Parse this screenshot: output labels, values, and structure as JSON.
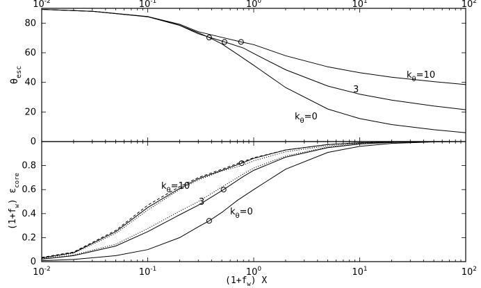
{
  "chart_data": [
    {
      "type": "line",
      "panel": "top",
      "xscale": "log",
      "xlim": [
        0.01,
        100
      ],
      "ylim": [
        0,
        90
      ],
      "yticks": [
        0,
        20,
        40,
        60,
        80
      ],
      "ylabel": {
        "main": "θ",
        "sub": "esc"
      },
      "grid": false,
      "series": [
        {
          "name": "kθ=10",
          "x": [
            0.01,
            0.03,
            0.1,
            0.2,
            0.3,
            0.5,
            0.76,
            1,
            2,
            5,
            10,
            20,
            50,
            100
          ],
          "y": [
            89.3,
            88,
            84.4,
            79.2,
            74.2,
            70.4,
            67.3,
            65.5,
            58,
            50.5,
            46.5,
            43.5,
            40.5,
            38.5
          ]
        },
        {
          "name": "3",
          "x": [
            0.01,
            0.03,
            0.1,
            0.2,
            0.3,
            0.53,
            0.8,
            1,
            2,
            5,
            10,
            20,
            50,
            100
          ],
          "y": [
            89.3,
            88,
            84.4,
            78.5,
            72.8,
            67.3,
            63.2,
            59.5,
            48.5,
            37.5,
            32,
            28,
            24,
            21.5
          ]
        },
        {
          "name": "kθ=0",
          "x": [
            0.01,
            0.03,
            0.1,
            0.2,
            0.3,
            0.38,
            0.5,
            0.7,
            1,
            2,
            5,
            10,
            20,
            50,
            100
          ],
          "y": [
            89.3,
            88,
            84.3,
            78.5,
            73.5,
            70.3,
            66,
            59,
            51.5,
            36.5,
            22,
            15.5,
            11.5,
            8,
            6
          ]
        }
      ],
      "markers": [
        {
          "x": 0.38,
          "y": 70.3
        },
        {
          "x": 0.53,
          "y": 67.3
        },
        {
          "x": 0.76,
          "y": 67.3
        }
      ],
      "annotations": [
        {
          "main": "k",
          "sub": "θ",
          "tail": "=10"
        },
        {
          "main": "3",
          "sub": "",
          "tail": ""
        },
        {
          "main": "k",
          "sub": "θ",
          "tail": "=0"
        }
      ]
    },
    {
      "type": "line",
      "panel": "bottom",
      "xscale": "log",
      "xlim": [
        0.01,
        100
      ],
      "ylim": [
        0,
        1
      ],
      "yticks": [
        "0",
        "0.2",
        "0.4",
        "0.6",
        "0.8"
      ],
      "xticks": [
        {
          "base": "10",
          "exp": "-2"
        },
        {
          "base": "10",
          "exp": "-1"
        },
        {
          "base": "10",
          "exp": "0"
        },
        {
          "base": "10",
          "exp": "1"
        },
        {
          "base": "10",
          "exp": "2"
        }
      ],
      "ylabel": {
        "p1": "(1+f",
        "p1sub": "w",
        "p2": ") ε",
        "p2sub": "core"
      },
      "xlabel": {
        "p1": "(1+f",
        "p1sub": "w",
        "p2": ")  X"
      },
      "grid": false,
      "series": [
        {
          "name": "kθ=10",
          "style": "solid",
          "x": [
            0.01,
            0.02,
            0.05,
            0.1,
            0.2,
            0.3,
            0.5,
            0.77,
            1,
            2,
            5,
            10,
            20,
            50,
            100
          ],
          "y": [
            0.03,
            0.075,
            0.25,
            0.45,
            0.61,
            0.69,
            0.76,
            0.82,
            0.86,
            0.93,
            0.975,
            0.99,
            0.997,
            1,
            1
          ]
        },
        {
          "name": "kθ=10 dashed",
          "style": "dashed",
          "x": [
            0.01,
            0.02,
            0.05,
            0.1,
            0.2,
            0.3,
            0.5,
            0.77,
            1,
            2,
            5,
            10,
            20,
            50,
            100
          ],
          "y": [
            0.035,
            0.08,
            0.26,
            0.47,
            0.625,
            0.7,
            0.77,
            0.83,
            0.865,
            0.93,
            0.975,
            0.99,
            0.997,
            1,
            1
          ]
        },
        {
          "name": "kθ=10 dotted",
          "style": "dotted",
          "x": [
            0.01,
            0.02,
            0.05,
            0.1,
            0.2,
            0.3,
            0.5,
            0.77,
            1,
            2,
            5,
            10,
            20,
            50,
            100
          ],
          "y": [
            0.028,
            0.07,
            0.235,
            0.43,
            0.6,
            0.68,
            0.755,
            0.8,
            0.84,
            0.915,
            0.965,
            0.985,
            0.995,
            1,
            1
          ]
        },
        {
          "name": "3",
          "style": "solid",
          "x": [
            0.01,
            0.02,
            0.05,
            0.1,
            0.2,
            0.3,
            0.52,
            0.8,
            1,
            2,
            5,
            10,
            20,
            50,
            100
          ],
          "y": [
            0.02,
            0.05,
            0.13,
            0.25,
            0.39,
            0.47,
            0.6,
            0.71,
            0.76,
            0.87,
            0.95,
            0.98,
            0.993,
            1,
            1
          ]
        },
        {
          "name": "3 dotted",
          "style": "dotted",
          "x": [
            0.01,
            0.02,
            0.05,
            0.1,
            0.2,
            0.3,
            0.52,
            0.8,
            1,
            2,
            5,
            10,
            20,
            50,
            100
          ],
          "y": [
            0.022,
            0.055,
            0.145,
            0.275,
            0.42,
            0.5,
            0.63,
            0.73,
            0.78,
            0.88,
            0.955,
            0.98,
            0.993,
            1,
            1
          ]
        },
        {
          "name": "kθ=0",
          "style": "solid",
          "x": [
            0.01,
            0.02,
            0.05,
            0.1,
            0.2,
            0.3,
            0.38,
            0.5,
            0.7,
            1,
            2,
            5,
            10,
            20,
            50,
            100
          ],
          "y": [
            0.008,
            0.018,
            0.05,
            0.1,
            0.2,
            0.29,
            0.34,
            0.41,
            0.51,
            0.6,
            0.77,
            0.91,
            0.96,
            0.985,
            0.997,
            1
          ]
        }
      ],
      "markers": [
        {
          "x": 0.77,
          "y": 0.82
        },
        {
          "x": 0.52,
          "y": 0.6
        },
        {
          "x": 0.38,
          "y": 0.34
        }
      ],
      "annotations": [
        {
          "main": "k",
          "sub": "θ",
          "tail": "=10"
        },
        {
          "main": "3",
          "sub": "",
          "tail": ""
        },
        {
          "main": "k",
          "sub": "θ",
          "tail": "=0"
        }
      ]
    }
  ]
}
